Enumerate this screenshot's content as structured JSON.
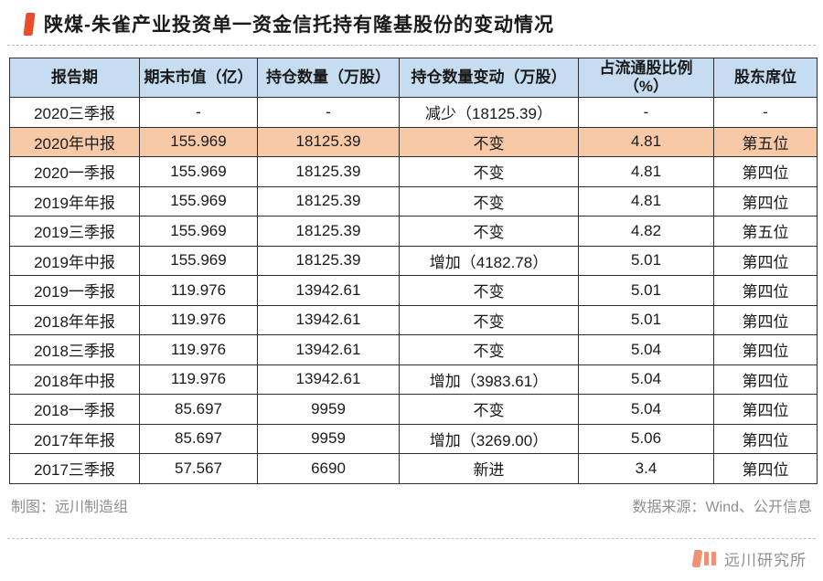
{
  "title": "陕煤-朱雀产业投资单一资金信托持有隆基股份的变动情况",
  "colors": {
    "accent_red": "#e84e2c",
    "header_bg": "#c6dcf0",
    "highlight_bg": "#f7c9a7",
    "table_border": "#2e2e2e",
    "muted_text": "#8f8f8f",
    "logo_coral": "#ef9077"
  },
  "chart_data": {
    "type": "table",
    "title": "陕煤-朱雀产业投资单一资金信托持有隆基股份的变动情况",
    "columns": [
      "报告期",
      "期末市值（亿）",
      "持仓数量（万股）",
      "持仓数量变动（万股）",
      "占流通股比例（%）",
      "股东席位"
    ],
    "rows": [
      {
        "cells": [
          "2020三季报",
          "-",
          "-",
          "减少（18125.39）",
          "-",
          "-"
        ],
        "highlight": false
      },
      {
        "cells": [
          "2020年中报",
          "155.969",
          "18125.39",
          "不变",
          "4.81",
          "第五位"
        ],
        "highlight": true
      },
      {
        "cells": [
          "2020一季报",
          "155.969",
          "18125.39",
          "不变",
          "4.81",
          "第四位"
        ],
        "highlight": false
      },
      {
        "cells": [
          "2019年年报",
          "155.969",
          "18125.39",
          "不变",
          "4.81",
          "第四位"
        ],
        "highlight": false
      },
      {
        "cells": [
          "2019三季报",
          "155.969",
          "18125.39",
          "不变",
          "4.82",
          "第五位"
        ],
        "highlight": false
      },
      {
        "cells": [
          "2019年中报",
          "155.969",
          "18125.39",
          "增加（4182.78）",
          "5.01",
          "第四位"
        ],
        "highlight": false
      },
      {
        "cells": [
          "2019一季报",
          "119.976",
          "13942.61",
          "不变",
          "5.01",
          "第四位"
        ],
        "highlight": false
      },
      {
        "cells": [
          "2018年年报",
          "119.976",
          "13942.61",
          "不变",
          "5.01",
          "第四位"
        ],
        "highlight": false
      },
      {
        "cells": [
          "2018三季报",
          "119.976",
          "13942.61",
          "不变",
          "5.04",
          "第四位"
        ],
        "highlight": false
      },
      {
        "cells": [
          "2018年中报",
          "119.976",
          "13942.61",
          "增加（3983.61）",
          "5.04",
          "第四位"
        ],
        "highlight": false
      },
      {
        "cells": [
          "2018一季报",
          "85.697",
          "9959",
          "不变",
          "5.04",
          "第四位"
        ],
        "highlight": false
      },
      {
        "cells": [
          "2017年年报",
          "85.697",
          "9959",
          "增加（3269.00）",
          "5.06",
          "第四位"
        ],
        "highlight": false
      },
      {
        "cells": [
          "2017三季报",
          "57.567",
          "6690",
          "新进",
          "3.4",
          "第四位"
        ],
        "highlight": false
      }
    ]
  },
  "footer": {
    "credit": "制图：远川制造组",
    "source": "数据来源：Wind、公开信息"
  },
  "logo": {
    "name": "远川研究所"
  }
}
